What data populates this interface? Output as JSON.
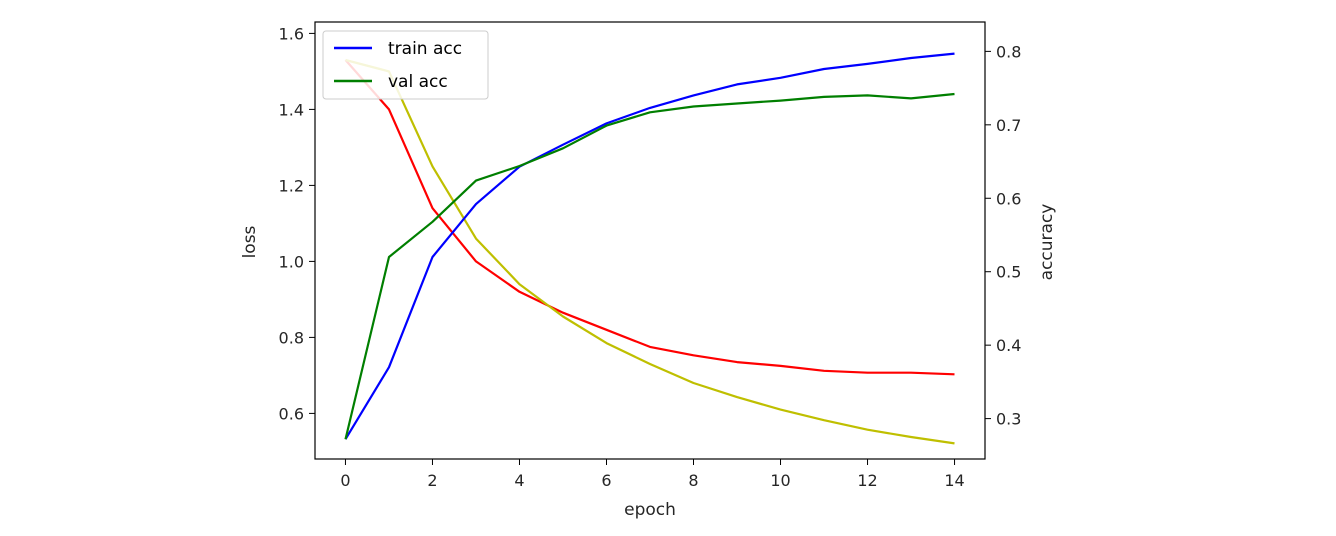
{
  "chart_data": {
    "type": "line",
    "x": [
      0,
      1,
      2,
      3,
      4,
      5,
      6,
      7,
      8,
      9,
      10,
      11,
      12,
      13,
      14
    ],
    "xlabel": "epoch",
    "xticks": [
      "0",
      "2",
      "4",
      "6",
      "8",
      "10",
      "12",
      "14"
    ],
    "xtick_values": [
      0,
      2,
      4,
      6,
      8,
      10,
      12,
      14
    ],
    "xlim": [
      -0.7,
      14.7
    ],
    "ylabel_left": "loss",
    "yticks_left": [
      "0.6",
      "0.8",
      "1.0",
      "1.2",
      "1.4",
      "1.6"
    ],
    "ytick_values_left": [
      0.6,
      0.8,
      1.0,
      1.2,
      1.4,
      1.6
    ],
    "ylim_left": [
      0.48,
      1.63
    ],
    "ylabel_right": "accuracy",
    "yticks_right": [
      "0.3",
      "0.4",
      "0.5",
      "0.6",
      "0.7",
      "0.8"
    ],
    "ytick_values_right": [
      0.3,
      0.4,
      0.5,
      0.6,
      0.7,
      0.8
    ],
    "ylim_right": [
      0.245,
      0.84
    ],
    "grid": false,
    "legend_position": "upper-left",
    "series": [
      {
        "name": "",
        "axis": "left",
        "color": "#ff0000",
        "values": [
          1.53,
          1.4,
          1.14,
          1.0,
          0.92,
          0.865,
          0.82,
          0.775,
          0.753,
          0.735,
          0.725,
          0.712,
          0.707,
          0.707,
          0.703
        ]
      },
      {
        "name": "",
        "axis": "left",
        "color": "#bfbf00",
        "values": [
          1.53,
          1.5,
          1.25,
          1.06,
          0.94,
          0.855,
          0.785,
          0.73,
          0.68,
          0.643,
          0.61,
          0.582,
          0.557,
          0.538,
          0.521
        ]
      },
      {
        "name": "train acc",
        "axis": "right",
        "color": "#0000ff",
        "values": [
          0.272,
          0.37,
          0.52,
          0.592,
          0.643,
          0.673,
          0.702,
          0.723,
          0.74,
          0.755,
          0.764,
          0.776,
          0.783,
          0.791,
          0.797
        ]
      },
      {
        "name": "val acc",
        "axis": "right",
        "color": "#007f00",
        "values": [
          0.272,
          0.52,
          0.568,
          0.624,
          0.644,
          0.668,
          0.699,
          0.717,
          0.725,
          0.729,
          0.733,
          0.738,
          0.74,
          0.736,
          0.742
        ]
      }
    ],
    "legend": [
      {
        "label": "train acc",
        "color": "#0000ff"
      },
      {
        "label": "val acc",
        "color": "#007f00"
      }
    ]
  }
}
